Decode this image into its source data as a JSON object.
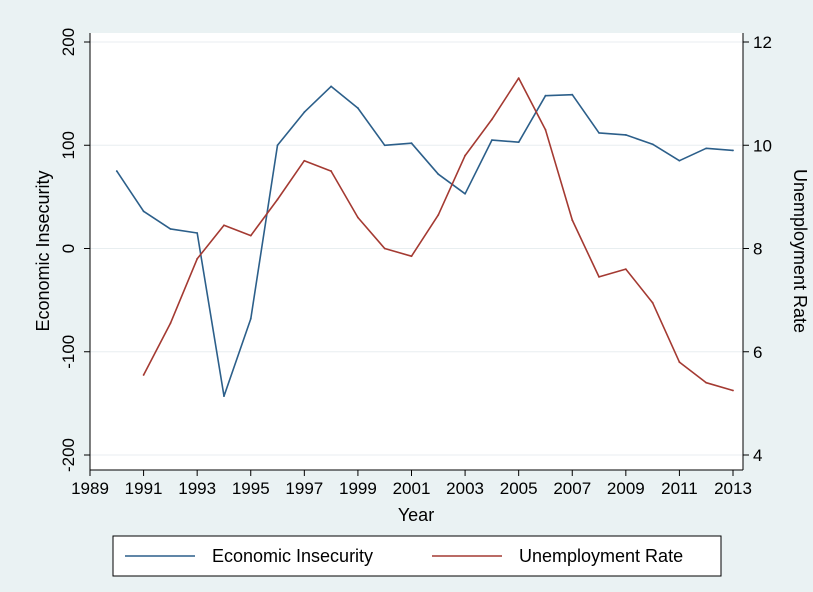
{
  "chart_data": {
    "type": "line",
    "title": "",
    "xlabel": "Year",
    "ylabel_left": "Economic Insecurity",
    "ylabel_right": "Unemployment Rate",
    "x_ticks": [
      1989,
      1991,
      1993,
      1995,
      1997,
      1999,
      2001,
      2003,
      2005,
      2007,
      2009,
      2011,
      2013
    ],
    "xlim": [
      1989,
      2013
    ],
    "ylim_left": [
      -200,
      200
    ],
    "ylim_right": [
      4,
      12
    ],
    "y_ticks_left": [
      -200,
      -100,
      0,
      100,
      200
    ],
    "y_ticks_right": [
      4,
      6,
      8,
      10,
      12
    ],
    "grid": true,
    "legend_position": "bottom",
    "series": [
      {
        "name": "Economic Insecurity",
        "axis": "left",
        "color": "#2c5f8a",
        "x": [
          1990,
          1991,
          1992,
          1993,
          1994,
          1995,
          1996,
          1997,
          1998,
          1999,
          2000,
          2001,
          2002,
          2003,
          2004,
          2005,
          2006,
          2007,
          2008,
          2009,
          2010,
          2011,
          2012,
          2013
        ],
        "values": [
          75,
          36,
          19,
          15,
          -143,
          -68,
          100,
          132,
          157,
          136,
          100,
          102,
          72,
          53,
          105,
          103,
          148,
          149,
          112,
          110,
          101,
          85,
          97,
          95
        ]
      },
      {
        "name": "Unemployment Rate",
        "axis": "right",
        "color": "#a43a32",
        "x": [
          1991,
          1992,
          1993,
          1994,
          1995,
          1996,
          1997,
          1998,
          1999,
          2000,
          2001,
          2002,
          2003,
          2004,
          2005,
          2006,
          2007,
          2008,
          2009,
          2010,
          2011,
          2012,
          2013
        ],
        "values": [
          5.55,
          6.55,
          7.8,
          8.45,
          8.25,
          8.95,
          9.7,
          9.5,
          8.6,
          8.0,
          7.85,
          8.65,
          9.8,
          10.5,
          11.3,
          10.3,
          8.55,
          7.45,
          7.6,
          6.95,
          5.8,
          5.4,
          5.25
        ]
      }
    ]
  }
}
